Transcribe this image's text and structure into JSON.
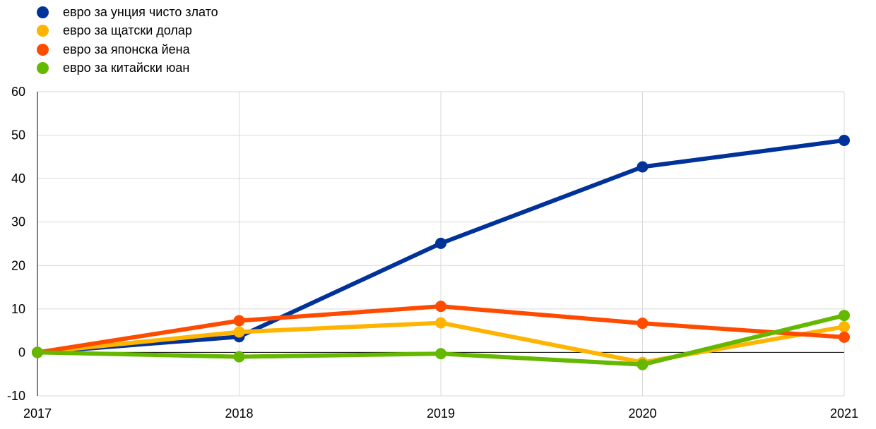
{
  "chart_data": {
    "type": "line",
    "categories": [
      "2017",
      "2018",
      "2019",
      "2020",
      "2021"
    ],
    "ylim": [
      -10,
      60
    ],
    "yticks": [
      -10,
      0,
      10,
      20,
      30,
      40,
      50,
      60
    ],
    "grid": true,
    "legend_position": "top-left",
    "series": [
      {
        "name": "евро за унция чисто злато",
        "color": "#003299",
        "values": [
          0,
          3.6,
          25.1,
          42.7,
          48.8
        ]
      },
      {
        "name": "евро за щатски долар",
        "color": "#FFB400",
        "values": [
          0,
          4.7,
          6.8,
          -2.3,
          5.9
        ]
      },
      {
        "name": "евро за японска йена",
        "color": "#FF4B00",
        "values": [
          0,
          7.3,
          10.6,
          6.7,
          3.5
        ]
      },
      {
        "name": "евро за китайски юан",
        "color": "#65B800",
        "values": [
          0,
          -1.0,
          -0.3,
          -2.8,
          8.5
        ]
      }
    ]
  }
}
